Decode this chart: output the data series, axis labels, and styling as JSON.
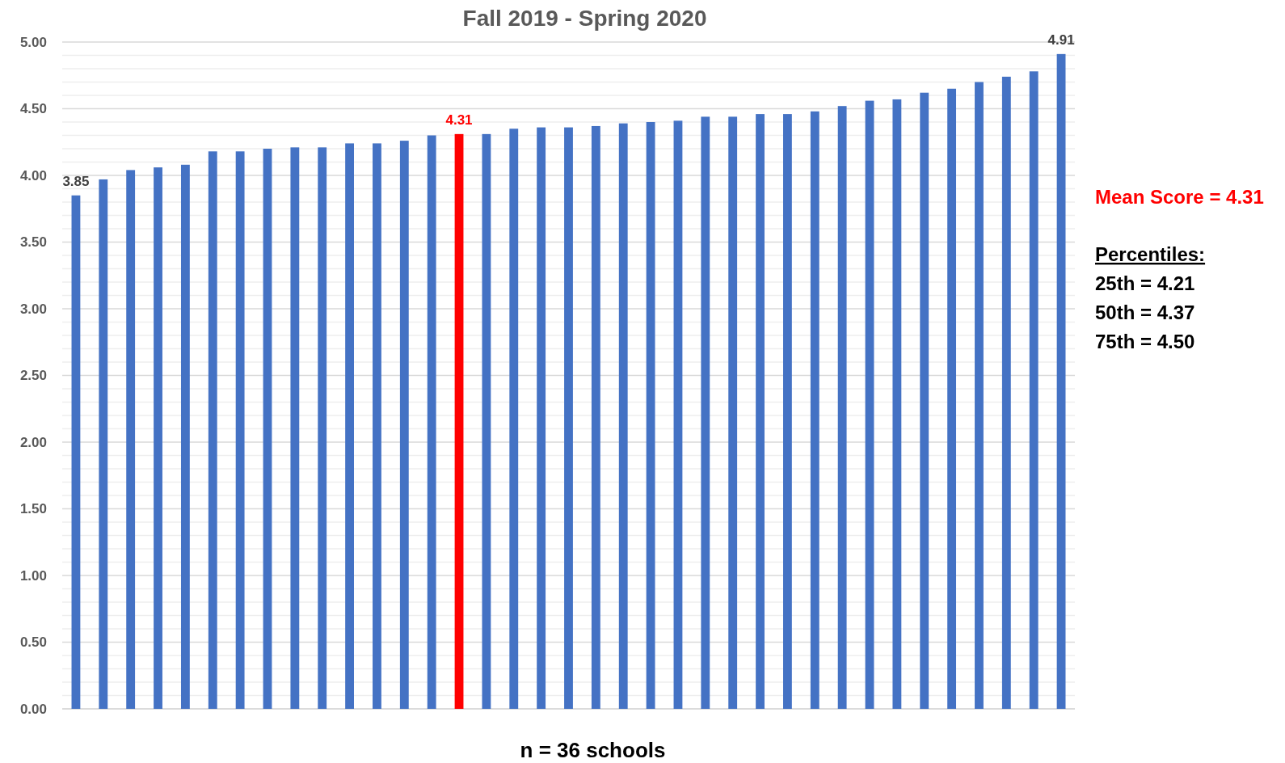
{
  "chart_data": {
    "type": "bar",
    "title": "Fall 2019 - Spring 2020",
    "xlabel": "n = 36 schools",
    "categories": [
      null,
      null,
      null,
      null,
      null,
      null,
      null,
      null,
      null,
      null,
      null,
      null,
      null,
      null,
      null,
      null,
      null,
      null,
      null,
      null,
      null,
      null,
      null,
      null,
      null,
      null,
      null,
      null,
      null,
      null,
      null,
      null,
      null,
      null,
      null,
      null,
      null
    ],
    "values": [
      3.85,
      3.97,
      4.04,
      4.06,
      4.08,
      4.18,
      4.18,
      4.2,
      4.21,
      4.21,
      4.24,
      4.24,
      4.26,
      4.3,
      4.31,
      4.31,
      4.35,
      4.36,
      4.36,
      4.37,
      4.39,
      4.4,
      4.41,
      4.44,
      4.44,
      4.46,
      4.46,
      4.48,
      4.52,
      4.56,
      4.57,
      4.62,
      4.65,
      4.7,
      4.74,
      4.78,
      4.91
    ],
    "colors": [
      "#4472c4",
      "#4472c4",
      "#4472c4",
      "#4472c4",
      "#4472c4",
      "#4472c4",
      "#4472c4",
      "#4472c4",
      "#4472c4",
      "#4472c4",
      "#4472c4",
      "#4472c4",
      "#4472c4",
      "#4472c4",
      "#ff0000",
      "#4472c4",
      "#4472c4",
      "#4472c4",
      "#4472c4",
      "#4472c4",
      "#4472c4",
      "#4472c4",
      "#4472c4",
      "#4472c4",
      "#4472c4",
      "#4472c4",
      "#4472c4",
      "#4472c4",
      "#4472c4",
      "#4472c4",
      "#4472c4",
      "#4472c4",
      "#4472c4",
      "#4472c4",
      "#4472c4",
      "#4472c4",
      "#4472c4"
    ],
    "value_labels": [
      "3.85",
      null,
      null,
      null,
      null,
      null,
      null,
      null,
      null,
      null,
      null,
      null,
      null,
      null,
      "4.31",
      null,
      null,
      null,
      null,
      null,
      null,
      null,
      null,
      null,
      null,
      null,
      null,
      null,
      null,
      null,
      null,
      null,
      null,
      null,
      null,
      null,
      "4.91"
    ],
    "ylim": [
      0,
      5
    ],
    "yticks": [
      {
        "value": 0,
        "label": "0.00"
      },
      {
        "value": 0.1,
        "label": null
      },
      {
        "value": 0.2,
        "label": null
      },
      {
        "value": 0.3,
        "label": null
      },
      {
        "value": 0.4,
        "label": null
      },
      {
        "value": 0.5,
        "label": "0.50"
      },
      {
        "value": 0.6,
        "label": null
      },
      {
        "value": 0.7,
        "label": null
      },
      {
        "value": 0.8,
        "label": null
      },
      {
        "value": 0.9,
        "label": null
      },
      {
        "value": 1,
        "label": "1.00"
      },
      {
        "value": 1.1,
        "label": null
      },
      {
        "value": 1.2,
        "label": null
      },
      {
        "value": 1.3,
        "label": null
      },
      {
        "value": 1.4,
        "label": null
      },
      {
        "value": 1.5,
        "label": "1.50"
      },
      {
        "value": 1.6,
        "label": null
      },
      {
        "value": 1.7,
        "label": null
      },
      {
        "value": 1.8,
        "label": null
      },
      {
        "value": 1.9,
        "label": null
      },
      {
        "value": 2,
        "label": "2.00"
      },
      {
        "value": 2.1,
        "label": null
      },
      {
        "value": 2.2,
        "label": null
      },
      {
        "value": 2.3,
        "label": null
      },
      {
        "value": 2.4,
        "label": null
      },
      {
        "value": 2.5,
        "label": "2.50"
      },
      {
        "value": 2.6,
        "label": null
      },
      {
        "value": 2.7,
        "label": null
      },
      {
        "value": 2.8,
        "label": null
      },
      {
        "value": 2.9,
        "label": null
      },
      {
        "value": 3,
        "label": "3.00"
      },
      {
        "value": 3.1,
        "label": null
      },
      {
        "value": 3.2,
        "label": null
      },
      {
        "value": 3.3,
        "label": null
      },
      {
        "value": 3.4,
        "label": null
      },
      {
        "value": 3.5,
        "label": "3.50"
      },
      {
        "value": 3.6,
        "label": null
      },
      {
        "value": 3.7,
        "label": null
      },
      {
        "value": 3.8,
        "label": null
      },
      {
        "value": 3.9,
        "label": null
      },
      {
        "value": 4,
        "label": "4.00"
      },
      {
        "value": 4.1,
        "label": null
      },
      {
        "value": 4.2,
        "label": null
      },
      {
        "value": 4.3,
        "label": null
      },
      {
        "value": 4.4,
        "label": null
      },
      {
        "value": 4.5,
        "label": "4.50"
      },
      {
        "value": 4.6,
        "label": null
      },
      {
        "value": 4.7,
        "label": null
      },
      {
        "value": 4.8,
        "label": null
      },
      {
        "value": 4.9,
        "label": null
      },
      {
        "value": 5,
        "label": "5.00"
      }
    ],
    "grid": "y",
    "annotations": [
      "Mean Score = 4.31",
      "Percentiles:",
      "25th = 4.21",
      "50th = 4.37",
      "75th = 4.50"
    ]
  }
}
